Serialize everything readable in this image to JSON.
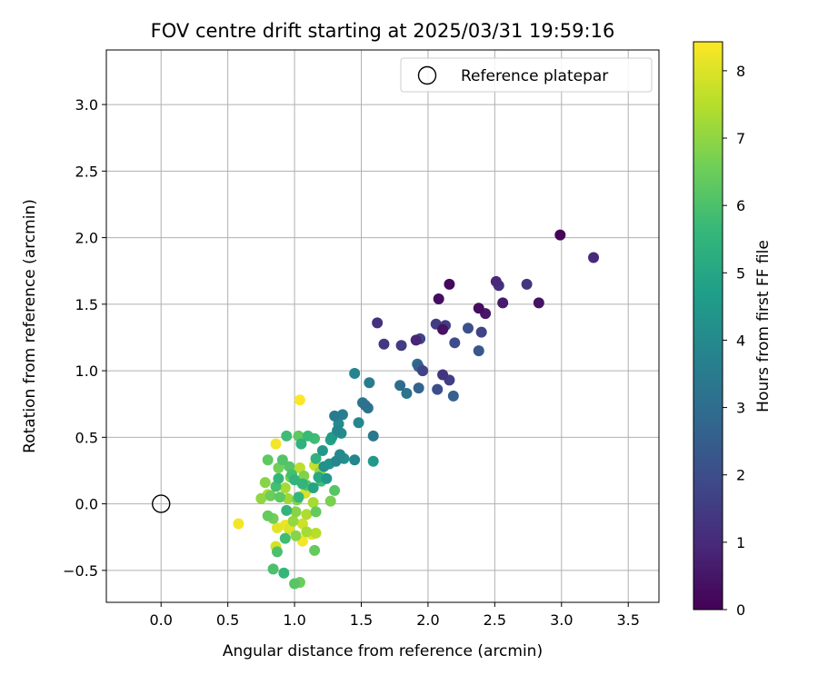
{
  "chart_data": {
    "type": "scatter",
    "title": "FOV centre drift starting at 2025/03/31 19:59:16",
    "xlabel": "Angular distance from reference (arcmin)",
    "ylabel": "Rotation from reference (arcmin)",
    "xlim": [
      -0.41,
      3.73
    ],
    "ylim": [
      -0.74,
      3.41
    ],
    "xticks": [
      0.0,
      0.5,
      1.0,
      1.5,
      2.0,
      2.5,
      3.0,
      3.5
    ],
    "xtick_labels": [
      "0.0",
      "0.5",
      "1.0",
      "1.5",
      "2.0",
      "2.5",
      "3.0",
      "3.5"
    ],
    "yticks": [
      -0.5,
      0.0,
      0.5,
      1.0,
      1.5,
      2.0,
      2.5,
      3.0
    ],
    "ytick_labels": [
      "−0.5",
      "0.0",
      "0.5",
      "1.0",
      "1.5",
      "2.0",
      "2.5",
      "3.0"
    ],
    "grid": true,
    "legend": {
      "placement": "top-right",
      "entries": [
        "Reference platepar"
      ]
    },
    "reference_point": {
      "x": 0.0,
      "y": 0.0
    },
    "colorbar": {
      "label": "Hours from first FF file",
      "range": [
        0,
        8.43
      ],
      "ticks": [
        0,
        1,
        2,
        3,
        4,
        5,
        6,
        7,
        8
      ],
      "tick_labels": [
        "0",
        "1",
        "2",
        "3",
        "4",
        "5",
        "6",
        "7",
        "8"
      ],
      "colormap": "viridis",
      "colors": [
        "#440154",
        "#482878",
        "#3e4989",
        "#31688e",
        "#26828e",
        "#1f9e89",
        "#35b779",
        "#6ece58",
        "#b5de2b",
        "#fde725"
      ]
    },
    "points": [
      [
        2.99,
        2.02,
        0.1
      ],
      [
        3.24,
        1.85,
        1.0
      ],
      [
        2.16,
        1.65,
        0.2
      ],
      [
        2.51,
        1.67,
        1.0
      ],
      [
        2.53,
        1.64,
        1.2
      ],
      [
        2.74,
        1.65,
        1.3
      ],
      [
        2.56,
        1.51,
        0.6
      ],
      [
        2.83,
        1.51,
        0.4
      ],
      [
        2.08,
        1.54,
        0.3
      ],
      [
        2.38,
        1.47,
        0.3
      ],
      [
        2.43,
        1.43,
        0.5
      ],
      [
        1.62,
        1.36,
        1.2
      ],
      [
        2.06,
        1.35,
        1.5
      ],
      [
        2.13,
        1.34,
        1.5
      ],
      [
        2.11,
        1.31,
        0.4
      ],
      [
        2.3,
        1.32,
        2.1
      ],
      [
        2.4,
        1.29,
        1.7
      ],
      [
        1.67,
        1.2,
        1.4
      ],
      [
        1.8,
        1.19,
        1.5
      ],
      [
        1.91,
        1.23,
        0.9
      ],
      [
        1.94,
        1.24,
        1.8
      ],
      [
        2.2,
        1.21,
        2.0
      ],
      [
        2.38,
        1.15,
        2.3
      ],
      [
        1.92,
        1.05,
        3.0
      ],
      [
        1.93,
        1.03,
        2.6
      ],
      [
        1.96,
        1.0,
        1.7
      ],
      [
        2.11,
        0.97,
        1.3
      ],
      [
        2.16,
        0.93,
        1.6
      ],
      [
        2.07,
        0.86,
        2.0
      ],
      [
        1.45,
        0.98,
        3.8
      ],
      [
        1.56,
        0.91,
        3.5
      ],
      [
        1.79,
        0.89,
        3.0
      ],
      [
        1.84,
        0.83,
        3.2
      ],
      [
        1.93,
        0.87,
        2.7
      ],
      [
        2.19,
        0.81,
        2.6
      ],
      [
        1.51,
        0.76,
        3.3
      ],
      [
        1.53,
        0.74,
        3.1
      ],
      [
        1.55,
        0.72,
        3.2
      ],
      [
        1.3,
        0.66,
        3.5
      ],
      [
        1.36,
        0.67,
        3.6
      ],
      [
        1.33,
        0.6,
        4.0
      ],
      [
        1.48,
        0.61,
        3.9
      ],
      [
        1.59,
        0.51,
        3.4
      ],
      [
        1.32,
        0.55,
        3.9
      ],
      [
        1.35,
        0.53,
        4.1
      ],
      [
        1.28,
        0.5,
        4.6
      ],
      [
        1.27,
        0.48,
        4.9
      ],
      [
        1.21,
        0.4,
        4.5
      ],
      [
        1.34,
        0.37,
        4.0
      ],
      [
        1.37,
        0.34,
        4.2
      ],
      [
        1.45,
        0.33,
        3.9
      ],
      [
        1.59,
        0.32,
        4.5
      ],
      [
        1.31,
        0.32,
        3.9
      ],
      [
        1.26,
        0.3,
        4.3
      ],
      [
        1.22,
        0.28,
        4.2
      ],
      [
        1.24,
        0.19,
        4.5
      ],
      [
        1.18,
        0.2,
        5.1
      ],
      [
        1.16,
        0.34,
        5.4
      ],
      [
        1.15,
        0.29,
        7.7
      ],
      [
        1.3,
        0.1,
        6.2
      ],
      [
        1.27,
        0.02,
        6.7
      ],
      [
        1.14,
        0.01,
        7.3
      ],
      [
        1.14,
        0.12,
        4.9
      ],
      [
        1.06,
        0.15,
        5.5
      ],
      [
        1.09,
        0.14,
        6.2
      ],
      [
        1.0,
        0.18,
        5.5
      ],
      [
        1.08,
        0.08,
        7.9
      ],
      [
        1.03,
        0.05,
        5.6
      ],
      [
        1.04,
        0.78,
        8.4
      ],
      [
        0.86,
        0.45,
        8.3
      ],
      [
        0.94,
        0.51,
        5.8
      ],
      [
        1.03,
        0.51,
        6.3
      ],
      [
        1.05,
        0.45,
        5.4
      ],
      [
        1.1,
        0.51,
        5.7
      ],
      [
        1.15,
        0.49,
        5.8
      ],
      [
        0.8,
        0.33,
        6.3
      ],
      [
        0.91,
        0.33,
        6.1
      ],
      [
        0.88,
        0.27,
        6.6
      ],
      [
        0.96,
        0.28,
        6.2
      ],
      [
        1.04,
        0.27,
        7.6
      ],
      [
        0.98,
        0.22,
        5.9
      ],
      [
        0.97,
        0.2,
        6.6
      ],
      [
        0.88,
        0.19,
        5.6
      ],
      [
        0.78,
        0.16,
        6.9
      ],
      [
        0.86,
        0.13,
        5.9
      ],
      [
        0.93,
        0.12,
        7.3
      ],
      [
        0.8,
        0.07,
        7.4
      ],
      [
        0.75,
        0.04,
        7.0
      ],
      [
        0.82,
        0.06,
        6.5
      ],
      [
        0.89,
        0.05,
        6.3
      ],
      [
        0.95,
        0.04,
        7.2
      ],
      [
        1.02,
        0.03,
        6.8
      ],
      [
        0.94,
        -0.05,
        5.5
      ],
      [
        1.01,
        -0.06,
        6.9
      ],
      [
        1.09,
        -0.08,
        7.4
      ],
      [
        1.16,
        -0.06,
        6.4
      ],
      [
        0.8,
        -0.09,
        6.4
      ],
      [
        0.84,
        -0.11,
        6.6
      ],
      [
        0.99,
        -0.13,
        7.1
      ],
      [
        1.06,
        -0.15,
        7.8
      ],
      [
        0.93,
        -0.16,
        8.2
      ],
      [
        0.96,
        -0.19,
        8.0
      ],
      [
        0.87,
        -0.18,
        8.1
      ],
      [
        1.09,
        -0.21,
        7.3
      ],
      [
        1.16,
        -0.22,
        7.5
      ],
      [
        1.13,
        -0.23,
        8.1
      ],
      [
        1.01,
        -0.24,
        6.9
      ],
      [
        1.06,
        -0.28,
        8.3
      ],
      [
        0.93,
        -0.26,
        5.8
      ],
      [
        0.86,
        -0.32,
        7.9
      ],
      [
        0.87,
        -0.36,
        6.0
      ],
      [
        1.15,
        -0.35,
        6.4
      ],
      [
        0.58,
        -0.15,
        8.3
      ],
      [
        0.84,
        -0.49,
        6.0
      ],
      [
        0.92,
        -0.52,
        5.6
      ],
      [
        1.0,
        -0.6,
        6.2
      ],
      [
        1.04,
        -0.59,
        6.5
      ],
      [
        1.19,
        0.24,
        7.1
      ],
      [
        1.2,
        0.17,
        5.8
      ],
      [
        1.07,
        0.21,
        6.8
      ]
    ]
  }
}
